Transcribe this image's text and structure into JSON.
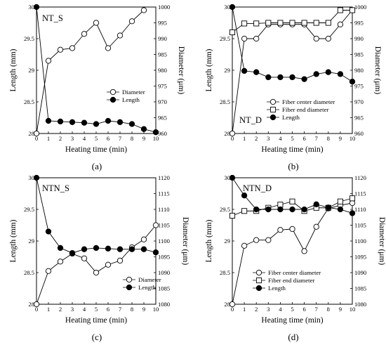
{
  "chart_data": [
    {
      "type": "line",
      "panel_label": "(a)",
      "title": "NT_S",
      "xlabel": "Heating time (min)",
      "ylabel": "Length (mm)",
      "y2label": "Diameter (μm)",
      "x": [
        0,
        1,
        2,
        3,
        4,
        5,
        6,
        7,
        8,
        9,
        10
      ],
      "xlim": [
        0,
        10
      ],
      "ylim": [
        28,
        30
      ],
      "y2lim": [
        960,
        1000
      ],
      "yticks": [
        "28",
        "28.5",
        "29",
        "29.5",
        "30"
      ],
      "y2ticks": [
        "960",
        "965",
        "970",
        "975",
        "980",
        "985",
        "990",
        "995",
        "1000"
      ],
      "series": [
        {
          "name": "Diameter",
          "axis": "right",
          "marker": "open-circle",
          "values": [
            960,
            983,
            986.5,
            987,
            991.5,
            995,
            987,
            991,
            995.5,
            999,
            null
          ]
        },
        {
          "name": "Length",
          "axis": "left",
          "marker": "filled-circle",
          "values": [
            30,
            28.2,
            28.19,
            28.18,
            28.17,
            28.15,
            28.2,
            28.18,
            28.15,
            28.07,
            28.02
          ]
        }
      ],
      "legend": "center-right"
    },
    {
      "type": "line",
      "panel_label": "(b)",
      "title": "NT_D",
      "xlabel": "Heating time (min)",
      "ylabel": "Length (mm)",
      "y2label": "Diameter (μm)",
      "x": [
        0,
        1,
        2,
        3,
        4,
        5,
        6,
        7,
        8,
        9,
        10
      ],
      "xlim": [
        0,
        10
      ],
      "ylim": [
        28,
        30
      ],
      "y2lim": [
        960,
        1000
      ],
      "yticks": [
        "28",
        "28.5",
        "29",
        "29.5",
        "30"
      ],
      "y2ticks": [
        "960",
        "965",
        "970",
        "975",
        "980",
        "985",
        "990",
        "995",
        "1000"
      ],
      "series": [
        {
          "name": "Fiber center diameter",
          "axis": "right",
          "marker": "open-circle",
          "values": [
            960,
            990,
            990,
            994.5,
            994.5,
            994.5,
            994.5,
            990,
            990,
            994.5,
            999
          ]
        },
        {
          "name": "Fiber end diameter",
          "axis": "right",
          "marker": "open-square",
          "values": [
            992,
            994.8,
            994.8,
            995,
            995,
            995,
            995,
            995,
            995,
            999,
            999
          ]
        },
        {
          "name": "Length",
          "axis": "left",
          "marker": "filled-circle",
          "values": [
            30,
            28.99,
            28.97,
            28.89,
            28.89,
            28.89,
            28.86,
            28.94,
            28.97,
            28.94,
            28.82
          ]
        }
      ],
      "legend": "bottom-center"
    },
    {
      "type": "line",
      "panel_label": "(c)",
      "title": "NTN_S",
      "xlabel": "Heating time (min)",
      "ylabel": "Length (mm)",
      "y2label": "Diameter (μm)",
      "x": [
        0,
        1,
        2,
        3,
        4,
        5,
        6,
        7,
        8,
        9,
        10
      ],
      "xlim": [
        0,
        10
      ],
      "ylim": [
        28,
        30
      ],
      "y2lim": [
        1080,
        1120
      ],
      "yticks": [
        "28",
        "28.5",
        "29",
        "29.5",
        "30"
      ],
      "y2ticks": [
        "1080",
        "1085",
        "1090",
        "1095",
        "1100",
        "1105",
        "1110",
        "1115",
        "1120"
      ],
      "series": [
        {
          "name": "Diameter",
          "axis": "right",
          "marker": "open-circle",
          "values": [
            1080,
            1090.5,
            1093.5,
            1096,
            1094.5,
            1090,
            1092.5,
            1093.8,
            1098,
            1100.5,
            1105
          ]
        },
        {
          "name": "Length",
          "axis": "left",
          "marker": "filled-circle",
          "values": [
            30,
            29.15,
            28.89,
            28.81,
            28.87,
            28.89,
            28.88,
            28.87,
            28.87,
            28.87,
            28.82
          ]
        }
      ],
      "legend": "bottom-right"
    },
    {
      "type": "line",
      "panel_label": "(d)",
      "title": "NTN_D",
      "xlabel": "Heating time (min)",
      "ylabel": "Length (mm)",
      "y2label": "Diameter (μm)",
      "x": [
        0,
        1,
        2,
        3,
        4,
        5,
        6,
        7,
        8,
        9,
        10
      ],
      "xlim": [
        0,
        10
      ],
      "ylim": [
        28,
        30
      ],
      "y2lim": [
        1080,
        1120
      ],
      "yticks": [
        "28",
        "28.5",
        "29",
        "29.5",
        "30"
      ],
      "y2ticks": [
        "1080",
        "1085",
        "1090",
        "1095",
        "1100",
        "1105",
        "1110",
        "1115",
        "1120"
      ],
      "series": [
        {
          "name": "Fiber center diameter",
          "axis": "right",
          "marker": "open-circle",
          "values": [
            1080,
            1098.5,
            1100.3,
            1100.3,
            1103.5,
            1103.8,
            1096.8,
            1104.5,
            1110.3,
            1111.3,
            1112
          ]
        },
        {
          "name": "Fiber end diameter",
          "axis": "right",
          "marker": "open-square",
          "values": [
            1108,
            1109.5,
            1109.5,
            1110.5,
            1111.5,
            1112.5,
            1109.5,
            1110.5,
            1110.5,
            1112.5,
            1113.5
          ]
        },
        {
          "name": "Length",
          "axis": "left",
          "marker": "filled-circle",
          "values": [
            30,
            29.72,
            29.5,
            29.5,
            29.5,
            29.5,
            29.5,
            29.58,
            29.53,
            29.5,
            29.44
          ]
        }
      ],
      "legend": "bottom-center"
    }
  ]
}
